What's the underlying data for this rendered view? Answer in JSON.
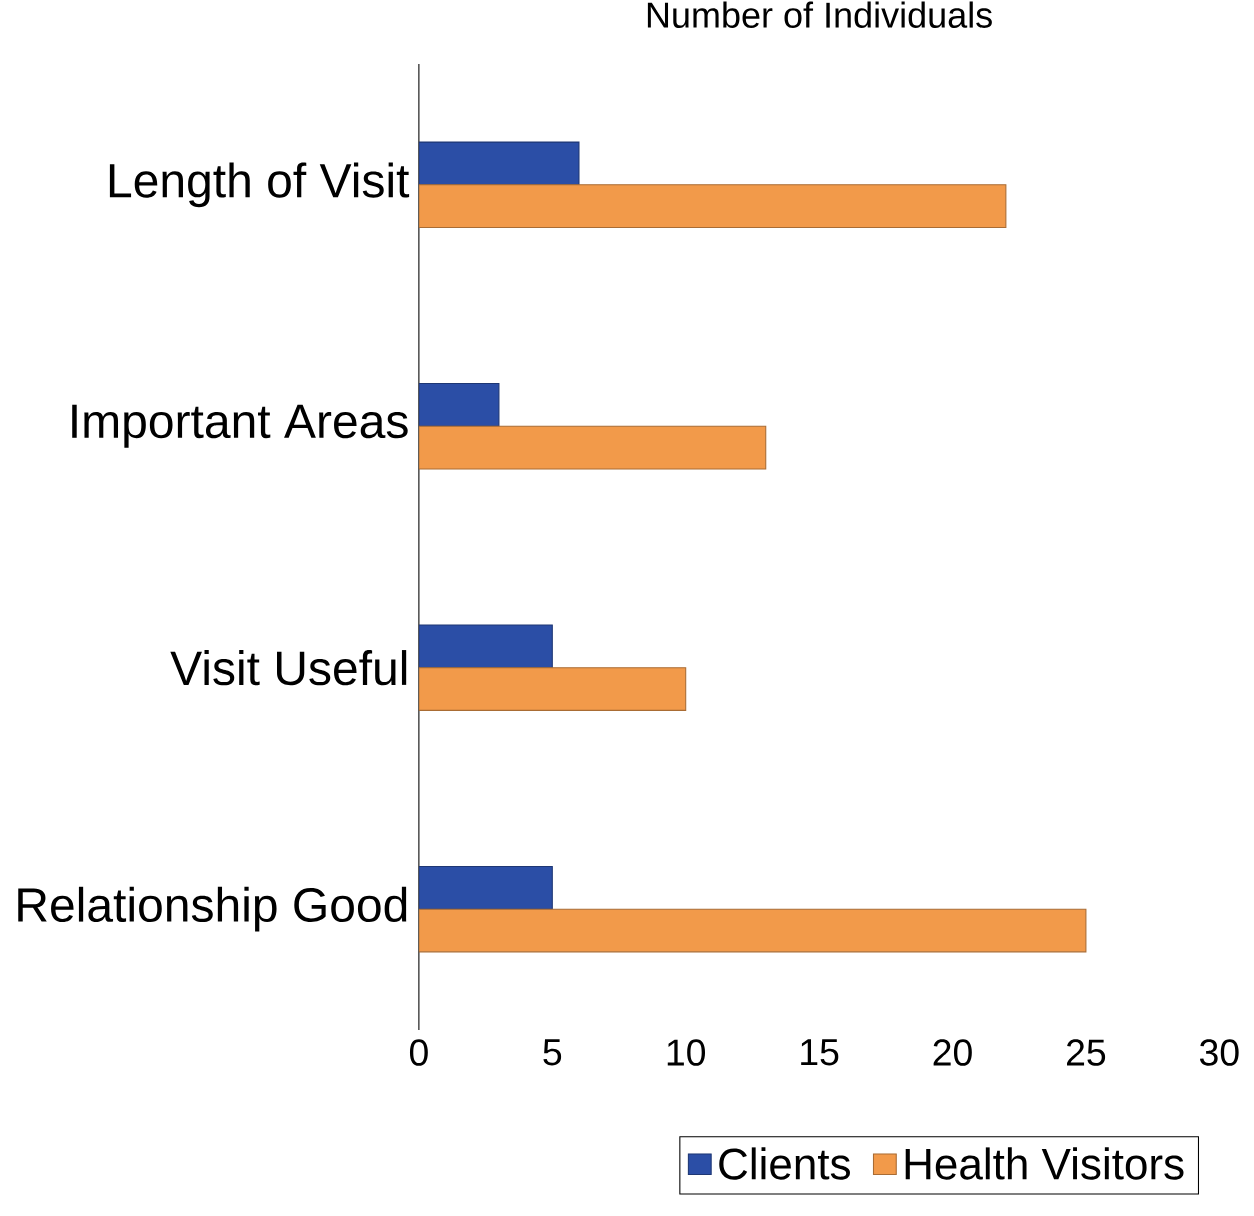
{
  "chart_data": {
    "type": "bar",
    "orientation": "horizontal",
    "title": "Number of Individuals",
    "categories": [
      "Length of Visit",
      "Important Areas",
      "Visit Useful",
      "Relationship Good"
    ],
    "series": [
      {
        "name": "Clients",
        "color": "#2b4ea6",
        "values": [
          6,
          3,
          5,
          5
        ]
      },
      {
        "name": "Health Visitors",
        "color": "#f29a4a",
        "values": [
          22,
          13,
          10,
          25
        ]
      }
    ],
    "xlim": [
      0,
      30
    ],
    "xticks": [
      0,
      5,
      10,
      15,
      20,
      25,
      30
    ],
    "legend": "bottom",
    "grid": false
  }
}
